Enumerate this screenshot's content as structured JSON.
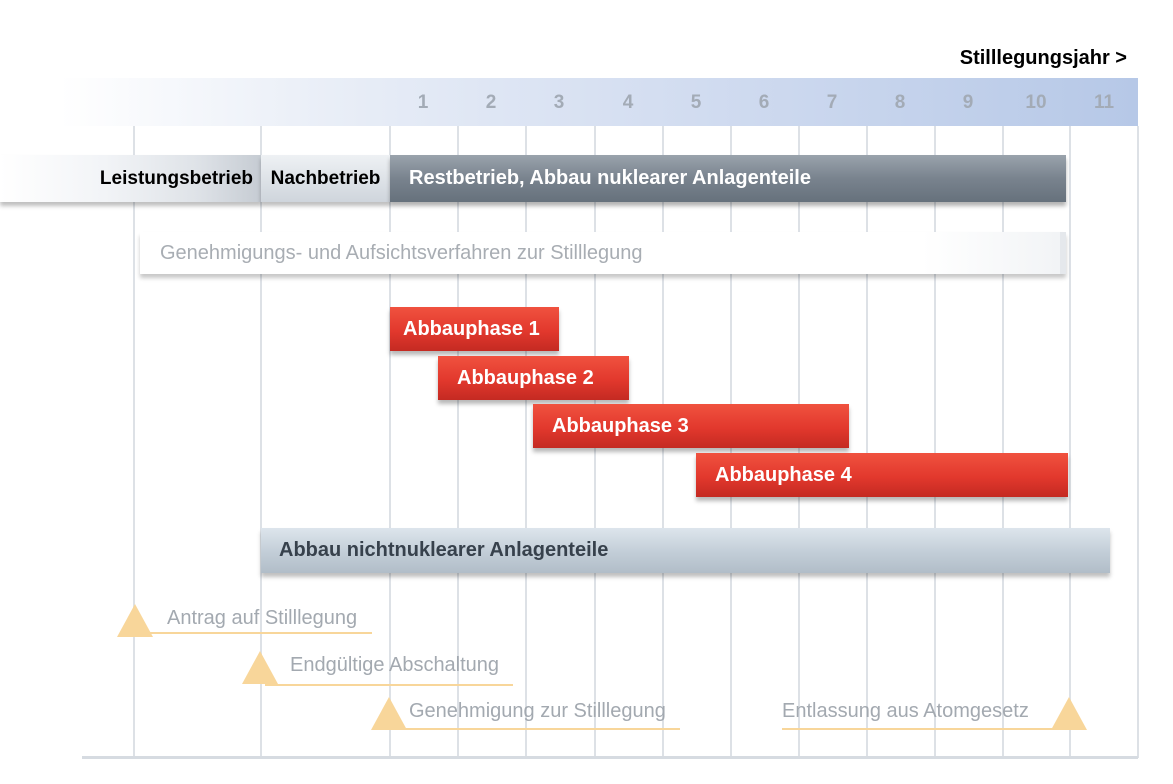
{
  "axis_title": "Stilllegungsjahr >",
  "years": [
    "1",
    "2",
    "3",
    "4",
    "5",
    "6",
    "7",
    "8",
    "9",
    "10",
    "11"
  ],
  "phases": {
    "leistungsbetrieb": "Leistungsbetrieb",
    "nachbetrieb": "Nachbetrieb",
    "restbetrieb": "Restbetrieb, Abbau nuklearer Anlagenteile"
  },
  "genehmigung_verfahren": "Genehmigungs- und Aufsichtsverfahren zur Stilllegung",
  "abbauphasen": [
    "Abbauphase 1",
    "Abbauphase 2",
    "Abbauphase 3",
    "Abbauphase 4"
  ],
  "abbau_nichtnuklear": "Abbau nichtnuklearer Anlagenteile",
  "milestones": {
    "antrag": "Antrag auf Stilllegung",
    "abschaltung": "Endgültige Abschaltung",
    "genehmigung": "Genehmigung zur Stilllegung",
    "entlassung": "Entlassung aus Atomgesetz"
  },
  "colors": {
    "abbauphase": "#e2382d",
    "restbetrieb": "#79838e",
    "nichtnuklear": "#c2cdd7",
    "milestone": "#f8d69a",
    "year_band": "#b6c8e7"
  }
}
